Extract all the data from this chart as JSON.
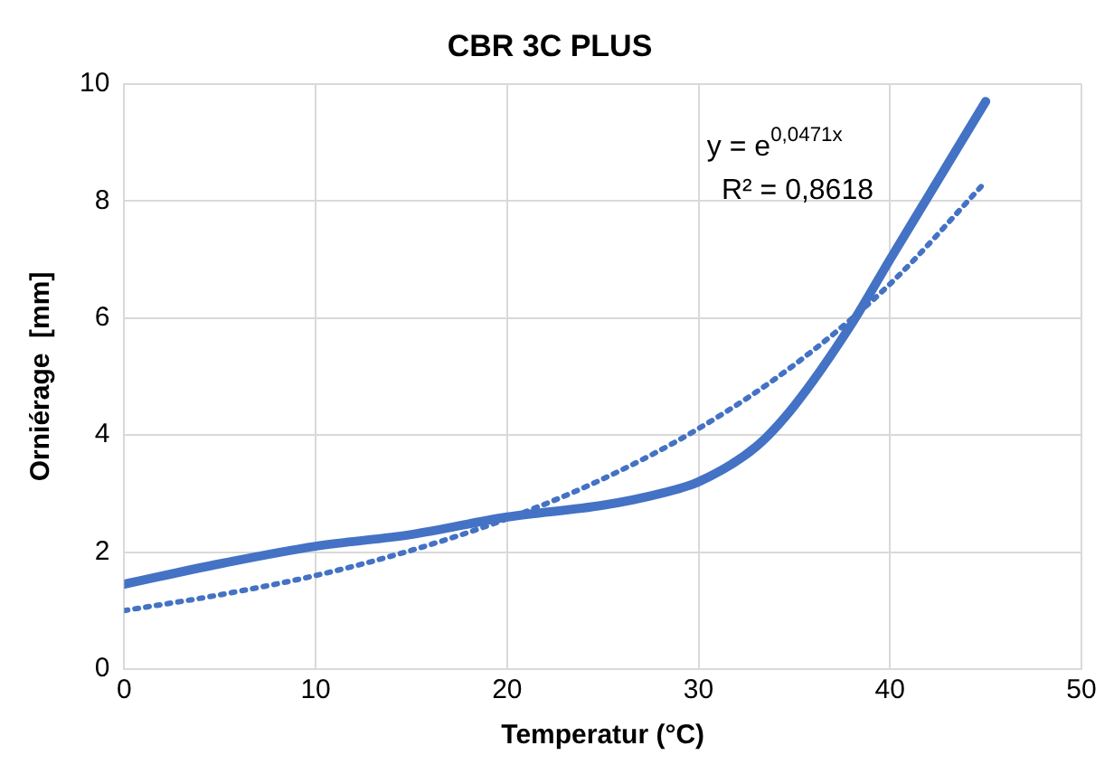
{
  "chart_data": {
    "type": "line",
    "title": "CBR 3C PLUS",
    "xlabel": "Temperatur (°C)",
    "ylabel": "Orniérage  [mm]",
    "xlim": [
      0,
      50
    ],
    "xticks": [
      0,
      10,
      20,
      30,
      40,
      50
    ],
    "ylim": [
      0,
      10
    ],
    "yticks": [
      0,
      2,
      4,
      6,
      8,
      10
    ],
    "grid": true,
    "legend": false,
    "marker": "none",
    "series": [
      {
        "color": "#4472c4",
        "line_style": "solid",
        "x": [
          0,
          5,
          10,
          15,
          20,
          25,
          28,
          30,
          33,
          35,
          38,
          40,
          45
        ],
        "values": [
          1.45,
          1.8,
          2.1,
          2.3,
          2.6,
          2.8,
          3.0,
          3.2,
          3.8,
          4.5,
          5.9,
          7.0,
          9.7
        ]
      },
      {
        "color": "#4472c4",
        "line_style": "dotted",
        "x": [
          0,
          5,
          10,
          15,
          20,
          25,
          30,
          35,
          40,
          45
        ],
        "values": [
          1.0,
          1.27,
          1.6,
          2.03,
          2.57,
          3.25,
          4.11,
          5.2,
          6.58,
          8.33
        ]
      }
    ],
    "annotations": [
      "y = e$^{0,0471x}$",
      "R² = 0,8618"
    ]
  }
}
